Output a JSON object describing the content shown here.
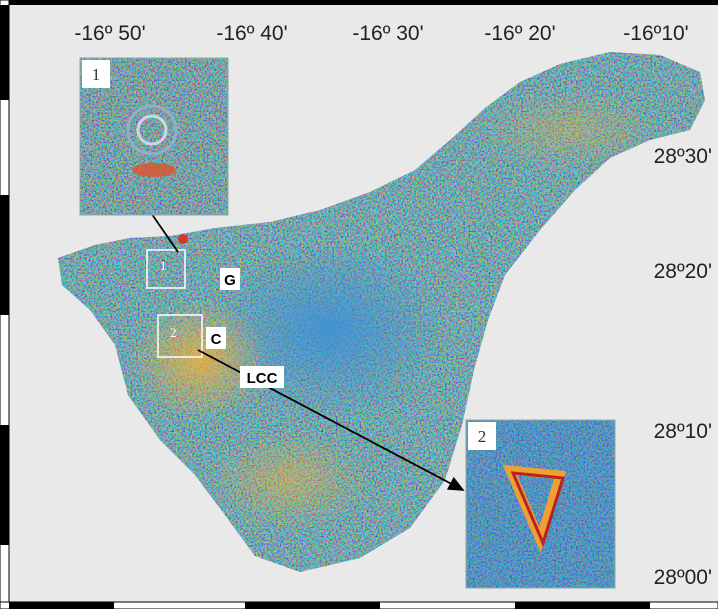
{
  "map": {
    "longitude_labels": [
      "-16º 50'",
      "-16º 40'",
      "-16º 30'",
      "-16º 20'",
      "-16º10'"
    ],
    "latitude_labels": [
      "28º30'",
      "28º20'",
      "28º10'",
      "28º00'"
    ],
    "site_labels": [
      "G",
      "C",
      "LCC"
    ],
    "inset_labels": [
      "1",
      "2"
    ],
    "zoom_box_labels": [
      "1",
      "2"
    ]
  }
}
